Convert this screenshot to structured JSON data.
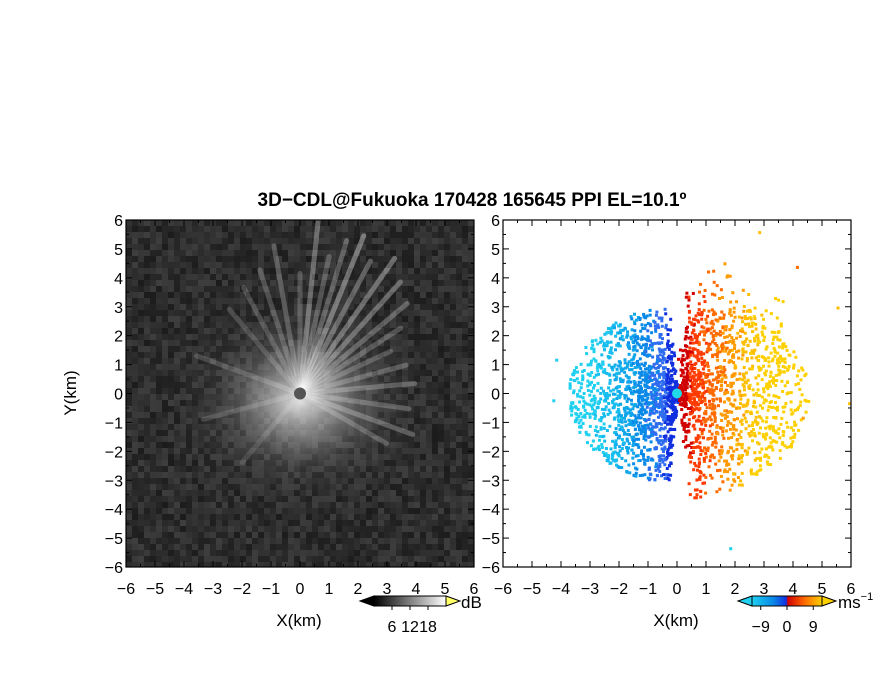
{
  "chart_data": [
    {
      "type": "heatmap",
      "title": "3D−CDL@Fukuoka 170428 165645 PPI EL=10.1º",
      "panel": "reflectivity",
      "xlabel": "X(km)",
      "ylabel": "Y(km)",
      "xlim": [
        -6,
        6
      ],
      "ylim": [
        -6,
        6
      ],
      "x_ticks": [
        -6,
        -5,
        -4,
        -3,
        -2,
        -1,
        0,
        1,
        2,
        3,
        4,
        5,
        6
      ],
      "y_ticks": [
        -6,
        -5,
        -4,
        -3,
        -2,
        -1,
        0,
        1,
        2,
        3,
        4,
        5,
        6
      ],
      "x_tick_labels": [
        "−6",
        "−5",
        "−4",
        "−3",
        "−2",
        "−1",
        "0",
        "1",
        "2",
        "3",
        "4",
        "5",
        "6"
      ],
      "y_tick_labels": [
        "−6",
        "−5",
        "−4",
        "−3",
        "−2",
        "−1",
        "0",
        "1",
        "2",
        "3",
        "4",
        "5",
        "6"
      ],
      "colorbar": {
        "unit": "dB",
        "tick_values": [
          6,
          12,
          18
        ],
        "tick_labels": [
          "6",
          "12",
          "18"
        ],
        "range": [
          0,
          24
        ],
        "colors": [
          "#000000",
          "#ffffff"
        ]
      }
    },
    {
      "type": "heatmap",
      "panel": "doppler velocity",
      "xlabel": "X(km)",
      "xlim": [
        -6,
        6
      ],
      "ylim": [
        -6,
        6
      ],
      "x_ticks": [
        -6,
        -5,
        -4,
        -3,
        -2,
        -1,
        0,
        1,
        2,
        3,
        4,
        5,
        6
      ],
      "y_ticks": [
        -6,
        -5,
        -4,
        -3,
        -2,
        -1,
        0,
        1,
        2,
        3,
        4,
        5,
        6
      ],
      "x_tick_labels": [
        "−6",
        "−5",
        "−4",
        "−3",
        "−2",
        "−1",
        "0",
        "1",
        "2",
        "3",
        "4",
        "5",
        "6"
      ],
      "y_tick_labels": [
        "−6",
        "−5",
        "−4",
        "−3",
        "−2",
        "−1",
        "0",
        "1",
        "2",
        "3",
        "4",
        "5",
        "6"
      ],
      "colorbar": {
        "unit": "ms",
        "unit_exponent": "−1",
        "tick_values": [
          -9,
          0,
          9
        ],
        "tick_labels": [
          "−9",
          "0",
          "9"
        ],
        "range": [
          -12,
          12
        ],
        "colors": [
          "#1fd0f0",
          "#0a8ae8",
          "#1030e0",
          "#d00000",
          "#ff6a00",
          "#ffd000"
        ]
      }
    }
  ]
}
